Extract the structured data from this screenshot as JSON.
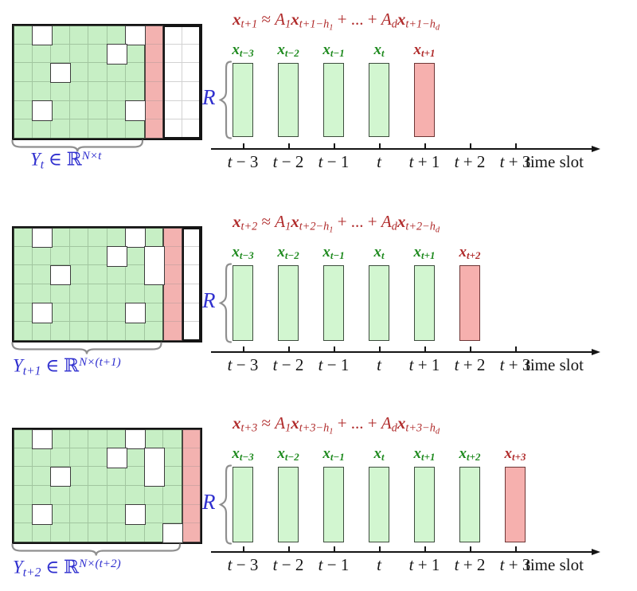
{
  "colors": {
    "matrix_green": "#c7efc5",
    "matrix_pink": "#f3b2b0",
    "bar_green": "#d2f6d0",
    "bar_red": "#f6b0ae",
    "grid_line_green": "#a2c6a0",
    "grid_line_pink": "#d4a6a4",
    "grid_line_white": "#d2d2d2",
    "region_border": "#41503f",
    "pink_border": "#524343",
    "white_region_border": "#141414",
    "bar_green_border": "#3d4d3d",
    "bar_red_border": "#6e3636",
    "formula_red": "#b02b2b",
    "label_green": "#1e8a1e",
    "label_blue": "#3030cf",
    "brace_gray": "#8f8f8f",
    "axis_black": "#151515"
  },
  "axis": {
    "tick_labels": [
      [
        [
          "i",
          "t"
        ],
        [
          "r",
          " − 3"
        ]
      ],
      [
        [
          "i",
          "t"
        ],
        [
          "r",
          " − 2"
        ]
      ],
      [
        [
          "i",
          "t"
        ],
        [
          "r",
          " − 1"
        ]
      ],
      [
        [
          "i",
          "t"
        ]
      ],
      [
        [
          "i",
          "t"
        ],
        [
          "r",
          " + 1"
        ]
      ],
      [
        [
          "i",
          "t"
        ],
        [
          "r",
          " + 2"
        ]
      ],
      [
        [
          "i",
          "t"
        ],
        [
          "r",
          " + 3"
        ]
      ]
    ],
    "title": "time slot"
  },
  "panels": [
    {
      "formula": [
        [
          "bi",
          "x"
        ],
        [
          "s",
          "t+1"
        ],
        [
          "r",
          " ≈ "
        ],
        [
          "i",
          "A"
        ],
        [
          "s",
          "1"
        ],
        [
          "bi",
          "x"
        ],
        [
          "s",
          "t+1−h"
        ],
        [
          "ss",
          "1"
        ],
        [
          "r",
          " + ... + "
        ],
        [
          "i",
          "A"
        ],
        [
          "s",
          "d"
        ],
        [
          "bi",
          "x"
        ],
        [
          "s",
          "t+1−h"
        ],
        [
          "ss",
          "d"
        ]
      ],
      "bar_labels": [
        {
          "color": "green",
          "segments": [
            [
              "bi",
              "x"
            ],
            [
              "s",
              "t−3"
            ]
          ]
        },
        {
          "color": "green",
          "segments": [
            [
              "bi",
              "x"
            ],
            [
              "s",
              "t−2"
            ]
          ]
        },
        {
          "color": "green",
          "segments": [
            [
              "bi",
              "x"
            ],
            [
              "s",
              "t−1"
            ]
          ]
        },
        {
          "color": "green",
          "segments": [
            [
              "bi",
              "x"
            ],
            [
              "s",
              "t"
            ]
          ]
        },
        {
          "color": "red",
          "segments": [
            [
              "bi",
              "x"
            ],
            [
              "s",
              "t+1"
            ]
          ]
        }
      ],
      "bars": [
        "green",
        "green",
        "green",
        "green",
        "red"
      ],
      "r_label": "R",
      "matrix": {
        "rows": 6,
        "cols": 10,
        "green_cols": 7,
        "pink_col": 7,
        "white_col_start": 8,
        "missing": [
          [
            0,
            1,
            1
          ],
          [
            0,
            6,
            1
          ],
          [
            1,
            5,
            1
          ],
          [
            2,
            2,
            1
          ],
          [
            4,
            1,
            1
          ],
          [
            4,
            6,
            1
          ]
        ]
      },
      "matrix_label": [
        [
          "i",
          "Y"
        ],
        [
          "s",
          "t"
        ],
        [
          "r",
          " ∈ "
        ],
        [
          "r",
          "ℝ"
        ],
        [
          "p",
          "N×t"
        ]
      ]
    },
    {
      "formula": [
        [
          "bi",
          "x"
        ],
        [
          "s",
          "t+2"
        ],
        [
          "r",
          " ≈ "
        ],
        [
          "i",
          "A"
        ],
        [
          "s",
          "1"
        ],
        [
          "bi",
          "x"
        ],
        [
          "s",
          "t+2−h"
        ],
        [
          "ss",
          "1"
        ],
        [
          "r",
          " + ... + "
        ],
        [
          "i",
          "A"
        ],
        [
          "s",
          "d"
        ],
        [
          "bi",
          "x"
        ],
        [
          "s",
          "t+2−h"
        ],
        [
          "ss",
          "d"
        ]
      ],
      "bar_labels": [
        {
          "color": "green",
          "segments": [
            [
              "bi",
              "x"
            ],
            [
              "s",
              "t−3"
            ]
          ]
        },
        {
          "color": "green",
          "segments": [
            [
              "bi",
              "x"
            ],
            [
              "s",
              "t−2"
            ]
          ]
        },
        {
          "color": "green",
          "segments": [
            [
              "bi",
              "x"
            ],
            [
              "s",
              "t−1"
            ]
          ]
        },
        {
          "color": "green",
          "segments": [
            [
              "bi",
              "x"
            ],
            [
              "s",
              "t"
            ]
          ]
        },
        {
          "color": "green",
          "segments": [
            [
              "bi",
              "x"
            ],
            [
              "s",
              "t+1"
            ]
          ]
        },
        {
          "color": "red",
          "segments": [
            [
              "bi",
              "x"
            ],
            [
              "s",
              "t+2"
            ]
          ]
        }
      ],
      "bars": [
        "green",
        "green",
        "green",
        "green",
        "green",
        "red"
      ],
      "r_label": "R",
      "matrix": {
        "rows": 6,
        "cols": 10,
        "green_cols": 8,
        "pink_col": 8,
        "white_col_start": 9,
        "missing": [
          [
            0,
            1,
            1
          ],
          [
            0,
            6,
            1
          ],
          [
            1,
            5,
            1
          ],
          [
            2,
            2,
            1
          ],
          [
            4,
            1,
            1
          ],
          [
            4,
            6,
            1
          ],
          [
            1,
            7,
            2
          ]
        ]
      },
      "matrix_label": [
        [
          "i",
          "Y"
        ],
        [
          "s",
          "t+1"
        ],
        [
          "r",
          " ∈ "
        ],
        [
          "r",
          "ℝ"
        ],
        [
          "p",
          "N×(t+1)"
        ]
      ]
    },
    {
      "formula": [
        [
          "bi",
          "x"
        ],
        [
          "s",
          "t+3"
        ],
        [
          "r",
          " ≈ "
        ],
        [
          "i",
          "A"
        ],
        [
          "s",
          "1"
        ],
        [
          "bi",
          "x"
        ],
        [
          "s",
          "t+3−h"
        ],
        [
          "ss",
          "1"
        ],
        [
          "r",
          " + ... + "
        ],
        [
          "i",
          "A"
        ],
        [
          "s",
          "d"
        ],
        [
          "bi",
          "x"
        ],
        [
          "s",
          "t+3−h"
        ],
        [
          "ss",
          "d"
        ]
      ],
      "bar_labels": [
        {
          "color": "green",
          "segments": [
            [
              "bi",
              "x"
            ],
            [
              "s",
              "t−3"
            ]
          ]
        },
        {
          "color": "green",
          "segments": [
            [
              "bi",
              "x"
            ],
            [
              "s",
              "t−2"
            ]
          ]
        },
        {
          "color": "green",
          "segments": [
            [
              "bi",
              "x"
            ],
            [
              "s",
              "t−1"
            ]
          ]
        },
        {
          "color": "green",
          "segments": [
            [
              "bi",
              "x"
            ],
            [
              "s",
              "t"
            ]
          ]
        },
        {
          "color": "green",
          "segments": [
            [
              "bi",
              "x"
            ],
            [
              "s",
              "t+1"
            ]
          ]
        },
        {
          "color": "green",
          "segments": [
            [
              "bi",
              "x"
            ],
            [
              "s",
              "t+2"
            ]
          ]
        },
        {
          "color": "red",
          "segments": [
            [
              "bi",
              "x"
            ],
            [
              "s",
              "t+3"
            ]
          ]
        }
      ],
      "bars": [
        "green",
        "green",
        "green",
        "green",
        "green",
        "green",
        "red"
      ],
      "r_label": "R",
      "matrix": {
        "rows": 6,
        "cols": 10,
        "green_cols": 9,
        "pink_col": 9,
        "white_col_start": 10,
        "missing": [
          [
            0,
            1,
            1
          ],
          [
            0,
            6,
            1
          ],
          [
            1,
            5,
            1
          ],
          [
            2,
            2,
            1
          ],
          [
            4,
            1,
            1
          ],
          [
            4,
            6,
            1
          ],
          [
            1,
            7,
            2
          ],
          [
            5,
            8,
            1
          ]
        ]
      },
      "matrix_label": [
        [
          "i",
          "Y"
        ],
        [
          "s",
          "t+2"
        ],
        [
          "r",
          " ∈ "
        ],
        [
          "r",
          "ℝ"
        ],
        [
          "p",
          "N×(t+2)"
        ]
      ]
    }
  ]
}
